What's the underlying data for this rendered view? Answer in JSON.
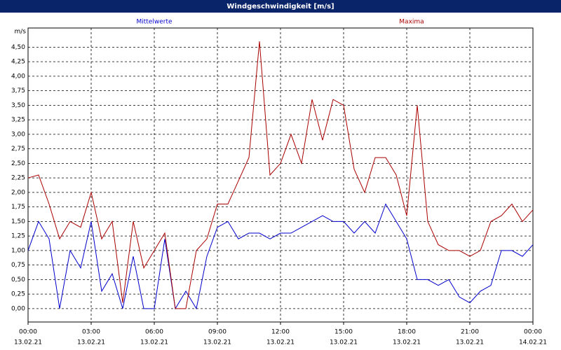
{
  "chart_data": {
    "type": "line",
    "title": "Windgeschwindigkeit [m/s]",
    "y_label": "m/s",
    "x": [
      0,
      0.5,
      1,
      1.5,
      2,
      2.5,
      3,
      3.5,
      4,
      4.5,
      5,
      5.5,
      6,
      6.5,
      7,
      7.5,
      8,
      8.5,
      9,
      9.5,
      10,
      10.5,
      11,
      11.5,
      12,
      12.5,
      13,
      13.5,
      14,
      14.5,
      15,
      15.5,
      16,
      16.5,
      17,
      17.5,
      18,
      18.5,
      19,
      19.5,
      20,
      20.5,
      21,
      21.5,
      22,
      22.5,
      23,
      23.5,
      24
    ],
    "series": [
      {
        "name": "Mittelwerte",
        "color": "#0000cc",
        "values": [
          1.0,
          1.5,
          1.2,
          0.0,
          1.0,
          0.7,
          1.5,
          0.3,
          0.6,
          0.0,
          0.9,
          0.0,
          0.0,
          1.2,
          0.0,
          0.3,
          0.0,
          0.9,
          1.4,
          1.5,
          1.2,
          1.3,
          1.3,
          1.2,
          1.3,
          1.3,
          1.4,
          1.5,
          1.6,
          1.5,
          1.5,
          1.3,
          1.5,
          1.3,
          1.8,
          1.5,
          1.2,
          0.5,
          0.5,
          0.4,
          0.5,
          0.2,
          0.1,
          0.3,
          0.4,
          1.0,
          1.0,
          0.9,
          1.1
        ]
      },
      {
        "name": "Maxima",
        "color": "#aa0000",
        "values": [
          2.25,
          2.3,
          1.8,
          1.2,
          1.5,
          1.4,
          2.0,
          1.2,
          1.5,
          0.1,
          1.5,
          0.7,
          1.0,
          1.3,
          0.0,
          0.0,
          1.0,
          1.2,
          1.8,
          1.8,
          2.2,
          2.6,
          4.6,
          2.3,
          2.5,
          3.0,
          2.5,
          3.6,
          2.9,
          3.6,
          3.5,
          2.4,
          2.0,
          2.6,
          2.6,
          2.3,
          1.6,
          3.5,
          1.5,
          1.1,
          1.0,
          1.0,
          0.9,
          1.0,
          1.5,
          1.6,
          1.8,
          1.5,
          1.7
        ]
      }
    ],
    "xlim": [
      0,
      24
    ],
    "xticks": [
      {
        "value": 0,
        "label": "00:00"
      },
      {
        "value": 3,
        "label": "03:00"
      },
      {
        "value": 6,
        "label": "06:00"
      },
      {
        "value": 9,
        "label": "09:00"
      },
      {
        "value": 12,
        "label": "12:00"
      },
      {
        "value": 15,
        "label": "15:00"
      },
      {
        "value": 18,
        "label": "18:00"
      },
      {
        "value": 21,
        "label": "21:00"
      },
      {
        "value": 24,
        "label": "00:00"
      }
    ],
    "xtick_dates": [
      "13.02.21",
      "13.02.21",
      "13.02.21",
      "13.02.21",
      "13.02.21",
      "13.02.21",
      "13.02.21",
      "13.02.21",
      "14.02.21"
    ],
    "ylim": [
      -0.23,
      4.83
    ],
    "yticks": [
      {
        "value": 0,
        "label": "0,00"
      },
      {
        "value": 0.25,
        "label": "0,25"
      },
      {
        "value": 0.5,
        "label": "0,50"
      },
      {
        "value": 0.75,
        "label": "0,75"
      },
      {
        "value": 1,
        "label": "1,00"
      },
      {
        "value": 1.25,
        "label": "1,25"
      },
      {
        "value": 1.5,
        "label": "1,50"
      },
      {
        "value": 1.75,
        "label": "1,75"
      },
      {
        "value": 2,
        "label": "2,00"
      },
      {
        "value": 2.25,
        "label": "2,25"
      },
      {
        "value": 2.5,
        "label": "2,50"
      },
      {
        "value": 2.75,
        "label": "2,75"
      },
      {
        "value": 3,
        "label": "3,00"
      },
      {
        "value": 3.25,
        "label": "3,25"
      },
      {
        "value": 3.5,
        "label": "3,50"
      },
      {
        "value": 3.75,
        "label": "3,75"
      },
      {
        "value": 4,
        "label": "4,00"
      },
      {
        "value": 4.25,
        "label": "4,25"
      },
      {
        "value": 4.5,
        "label": "4,50"
      }
    ],
    "grid": true
  }
}
